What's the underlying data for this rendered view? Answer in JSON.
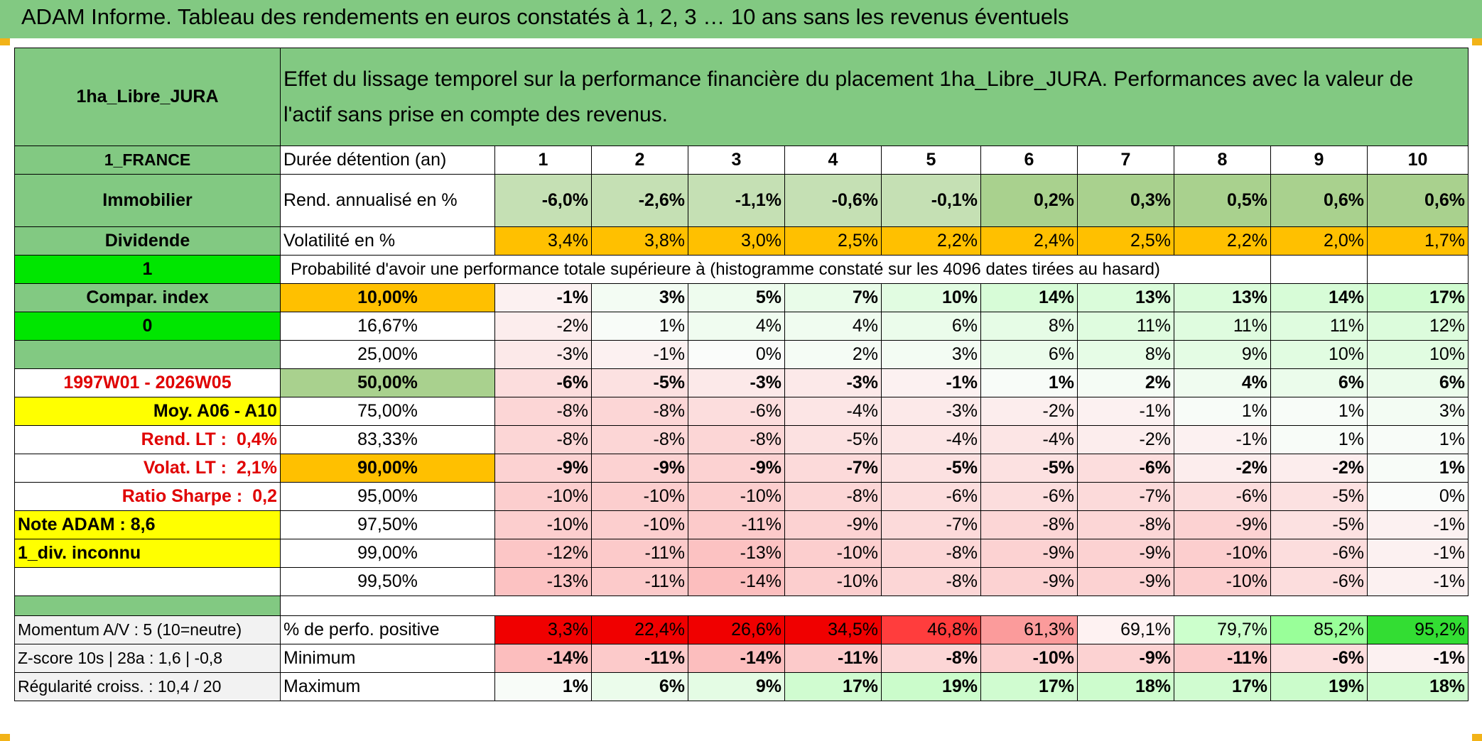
{
  "title": "ADAM Informe. Tableau des rendements en euros constatés à 1, 2, 3 … 10 ans sans les revenus éventuels",
  "header": {
    "fund_name": "1ha_Libre_JURA",
    "description": "Effet du lissage temporel sur la performance financière du placement 1ha_Libre_JURA. Performances avec la valeur de l'actif sans prise en compte des revenus."
  },
  "left": {
    "country": "1_FRANCE",
    "asset_class": "Immobilier",
    "dividend": "Dividende",
    "flag1": "1",
    "compar_index": "Compar. index",
    "flag0": "0",
    "period": "1997W01 - 2026W05",
    "moy": "Moy. A06 - A10",
    "rend_lt_label": "Rend. LT :",
    "rend_lt_value": "0,4%",
    "volat_lt_label": "Volat. LT :",
    "volat_lt_value": "2,1%",
    "sharpe_label": "Ratio Sharpe :",
    "sharpe_value": "0,2",
    "note": "Note ADAM : 8,6",
    "div": "1_div. inconnu",
    "momentum": "Momentum A/V : 5 (10=neutre)",
    "zscore": "Z-score 10s | 28a : 1,6 | -0,8",
    "regularite": "Régularité croiss. : 10,4 / 20"
  },
  "labels": {
    "duration": "Durée détention (an)",
    "rend": "Rend. annualisé en %",
    "vol": "Volatilité en %",
    "prob": "Probabilité d'avoir une performance totale supérieure à (histogramme constaté sur les 4096 dates tirées au hasard)",
    "pct_pos": "% de perfo. positive",
    "minimum": "Minimum",
    "maximum": "Maximum"
  },
  "years": [
    "1",
    "2",
    "3",
    "4",
    "5",
    "6",
    "7",
    "8",
    "9",
    "10"
  ],
  "rend": [
    "-6,0%",
    "-2,6%",
    "-1,1%",
    "-0,6%",
    "-0,1%",
    "0,2%",
    "0,3%",
    "0,5%",
    "0,6%",
    "0,6%"
  ],
  "vol": [
    "3,4%",
    "3,8%",
    "3,0%",
    "2,5%",
    "2,2%",
    "2,4%",
    "2,5%",
    "2,2%",
    "2,0%",
    "1,7%"
  ],
  "percentiles": [
    {
      "p": "10,00%",
      "v": [
        "-1%",
        "3%",
        "5%",
        "7%",
        "10%",
        "14%",
        "13%",
        "13%",
        "14%",
        "17%"
      ]
    },
    {
      "p": "16,67%",
      "v": [
        "-2%",
        "1%",
        "4%",
        "4%",
        "6%",
        "8%",
        "11%",
        "11%",
        "11%",
        "12%"
      ]
    },
    {
      "p": "25,00%",
      "v": [
        "-3%",
        "-1%",
        "0%",
        "2%",
        "3%",
        "6%",
        "8%",
        "9%",
        "10%",
        "10%"
      ]
    },
    {
      "p": "50,00%",
      "v": [
        "-6%",
        "-5%",
        "-3%",
        "-3%",
        "-1%",
        "1%",
        "2%",
        "4%",
        "6%",
        "6%"
      ]
    },
    {
      "p": "75,00%",
      "v": [
        "-8%",
        "-8%",
        "-6%",
        "-4%",
        "-3%",
        "-2%",
        "-1%",
        "1%",
        "1%",
        "3%"
      ]
    },
    {
      "p": "83,33%",
      "v": [
        "-8%",
        "-8%",
        "-8%",
        "-5%",
        "-4%",
        "-4%",
        "-2%",
        "-1%",
        "1%",
        "1%"
      ]
    },
    {
      "p": "90,00%",
      "v": [
        "-9%",
        "-9%",
        "-9%",
        "-7%",
        "-5%",
        "-5%",
        "-6%",
        "-2%",
        "-2%",
        "1%"
      ]
    },
    {
      "p": "95,00%",
      "v": [
        "-10%",
        "-10%",
        "-10%",
        "-8%",
        "-6%",
        "-6%",
        "-7%",
        "-6%",
        "-5%",
        "0%"
      ]
    },
    {
      "p": "97,50%",
      "v": [
        "-10%",
        "-10%",
        "-11%",
        "-9%",
        "-7%",
        "-8%",
        "-8%",
        "-9%",
        "-5%",
        "-1%"
      ]
    },
    {
      "p": "99,00%",
      "v": [
        "-12%",
        "-11%",
        "-13%",
        "-10%",
        "-8%",
        "-9%",
        "-9%",
        "-10%",
        "-6%",
        "-1%"
      ]
    },
    {
      "p": "99,50%",
      "v": [
        "-13%",
        "-11%",
        "-14%",
        "-10%",
        "-8%",
        "-9%",
        "-9%",
        "-10%",
        "-6%",
        "-1%"
      ]
    }
  ],
  "pct_pos": [
    "3,3%",
    "22,4%",
    "26,6%",
    "34,5%",
    "46,8%",
    "61,3%",
    "69,1%",
    "79,7%",
    "85,2%",
    "95,2%"
  ],
  "minimum": [
    "-14%",
    "-11%",
    "-14%",
    "-11%",
    "-8%",
    "-10%",
    "-9%",
    "-11%",
    "-6%",
    "-1%"
  ],
  "maximum": [
    "1%",
    "6%",
    "9%",
    "17%",
    "19%",
    "17%",
    "18%",
    "17%",
    "19%",
    "18%"
  ],
  "colors": {
    "header_green": "#82c982",
    "lime": "#00e600",
    "yellow": "#ffff00",
    "orange": "#ffc000",
    "red_text": "#e00000"
  }
}
